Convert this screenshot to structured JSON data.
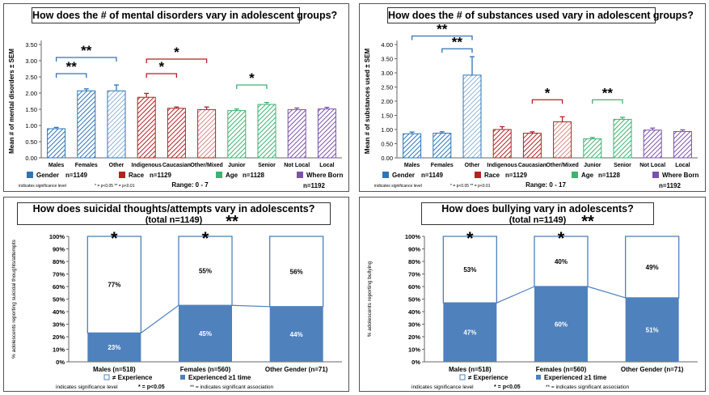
{
  "chart_data": [
    {
      "type": "bar",
      "title": "How does the # of mental disorders vary in adolescent groups?",
      "ylabel": "Mean # of mental disorders ± SEM",
      "ylim": [
        0,
        3.5
      ],
      "yticks": [
        "0.00",
        "0.50",
        "1.00",
        "1.50",
        "2.00",
        "2.50",
        "3.00",
        "3.50"
      ],
      "categories": [
        "Males",
        "Females",
        "Other",
        "Indigenous",
        "Caucasian",
        "Other/Mixed",
        "Junior",
        "Senior",
        "Not Local",
        "Local"
      ],
      "values": [
        0.9,
        2.07,
        2.07,
        1.87,
        1.53,
        1.49,
        1.46,
        1.65,
        1.49,
        1.51
      ],
      "errors": [
        0.04,
        0.06,
        0.18,
        0.12,
        0.04,
        0.08,
        0.05,
        0.06,
        0.05,
        0.05
      ],
      "groups": [
        {
          "label": "Gender",
          "n": "n=1149",
          "color": "#2E75B6"
        },
        {
          "label": "Race",
          "n": "n=1129",
          "color": "#B22222"
        },
        {
          "label": "Age",
          "n": "n=1128",
          "color": "#3CB371"
        },
        {
          "label": "Where Born",
          "n": "n=1192",
          "color": "#7B52AB"
        }
      ],
      "annotations": [
        {
          "text": "**",
          "from": 0,
          "to": 1,
          "value": 2.6,
          "color": "#2E75B6"
        },
        {
          "text": "**",
          "from": 0,
          "to": 2,
          "value": 3.1,
          "color": "#2E75B6"
        },
        {
          "text": "*",
          "from": 3,
          "to": 4,
          "value": 2.6,
          "color": "#B22222"
        },
        {
          "text": "*",
          "from": 3,
          "to": 5,
          "value": 3.05,
          "color": "#B22222"
        },
        {
          "text": "*",
          "from": 6,
          "to": 7,
          "value": 2.25,
          "color": "#3CB371"
        }
      ],
      "legend_note": "indicates significance level",
      "sig_note": "* = p<0.05     ** = p<0.01",
      "range": "Range: 0  - 7"
    },
    {
      "type": "bar",
      "title": "How does the # of substances used vary in adolescent groups?",
      "ylabel": "Mean # of substances used ± SEM",
      "ylim": [
        0,
        4.0
      ],
      "yticks": [
        "0.00",
        "0.50",
        "1.00",
        "1.50",
        "2.00",
        "2.50",
        "3.00",
        "3.50",
        "4.00"
      ],
      "categories": [
        "Males",
        "Females",
        "Other",
        "Indigenous",
        "Caucasian",
        "Other/Mixed",
        "Junior",
        "Senior",
        "Not Local",
        "Local"
      ],
      "values": [
        0.85,
        0.87,
        2.92,
        1.0,
        0.87,
        1.27,
        0.67,
        1.36,
        0.98,
        0.93
      ],
      "errors": [
        0.06,
        0.05,
        0.65,
        0.1,
        0.05,
        0.18,
        0.05,
        0.07,
        0.07,
        0.06
      ],
      "groups": [
        {
          "label": "Gender",
          "n": "n=1149",
          "color": "#2E75B6"
        },
        {
          "label": "Race",
          "n": "n=1129",
          "color": "#B22222"
        },
        {
          "label": "Age",
          "n": "n=1128",
          "color": "#3CB371"
        },
        {
          "label": "Where Born",
          "n": "n=1192",
          "color": "#7B52AB"
        }
      ],
      "annotations": [
        {
          "text": "**",
          "from": 0,
          "to": 2,
          "value": 4.3,
          "color": "#2E75B6"
        },
        {
          "text": "**",
          "from": 1,
          "to": 2,
          "value": 3.85,
          "color": "#2E75B6"
        },
        {
          "text": "*",
          "from": 4,
          "to": 5,
          "value": 2.05,
          "color": "#B22222"
        },
        {
          "text": "**",
          "from": 6,
          "to": 7,
          "value": 2.05,
          "color": "#3CB371"
        }
      ],
      "legend_note": "indicates significance level",
      "sig_note": "* = p<0.05     ** = p<0.01",
      "range": "Range: 0  - 17"
    },
    {
      "type": "stacked-bar",
      "title": "How does suicidal thoughts/attempts vary in adolescents?",
      "subtitle": "(total n=1149)",
      "title_mark": "**",
      "ylabel": "% adolescents reporting suicidal thoughts/attempts",
      "yticks": [
        "0%",
        "10%",
        "20%",
        "30%",
        "40%",
        "50%",
        "60%",
        "70%",
        "80%",
        "90%",
        "100%"
      ],
      "categories": [
        "Males (n=518)",
        "Females (n=560)",
        "Other Gender (n=71)"
      ],
      "series": [
        {
          "name": "Experienced ≥1 time",
          "values": [
            23,
            45,
            44
          ],
          "labels": [
            "23%",
            "45%",
            "44%"
          ]
        },
        {
          "name": "≠ Experience",
          "values": [
            77,
            55,
            56
          ],
          "labels": [
            "77%",
            "55%",
            "56%"
          ]
        }
      ],
      "bar_marks": [
        "*",
        "*",
        ""
      ],
      "footer": {
        "note": "indicates significance level",
        "single": "* = p<0.05",
        "double": "** = indicates significant association"
      }
    },
    {
      "type": "stacked-bar",
      "title": "How does bullying  vary in adolescents?",
      "subtitle": "(total n=1149)",
      "title_mark": "**",
      "ylabel": "% adolescents reporting bullying",
      "yticks": [
        "0%",
        "10%",
        "20%",
        "30%",
        "40%",
        "50%",
        "60%",
        "70%",
        "80%",
        "90%",
        "100%"
      ],
      "categories": [
        "Males (n=518)",
        "Females (n=560)",
        "Other Gender (n=71)"
      ],
      "series": [
        {
          "name": "Experienced ≥1 time",
          "values": [
            47,
            60,
            51
          ],
          "labels": [
            "47%",
            "60%",
            "51%"
          ]
        },
        {
          "name": "≠ Experience",
          "values": [
            53,
            40,
            49
          ],
          "labels": [
            "53%",
            "40%",
            "49%"
          ]
        }
      ],
      "bar_marks": [
        "*",
        "*",
        ""
      ],
      "footer": {
        "note": "indicates significance level",
        "single": "* = p<0.05",
        "double": "** = indicates significant association"
      }
    }
  ]
}
